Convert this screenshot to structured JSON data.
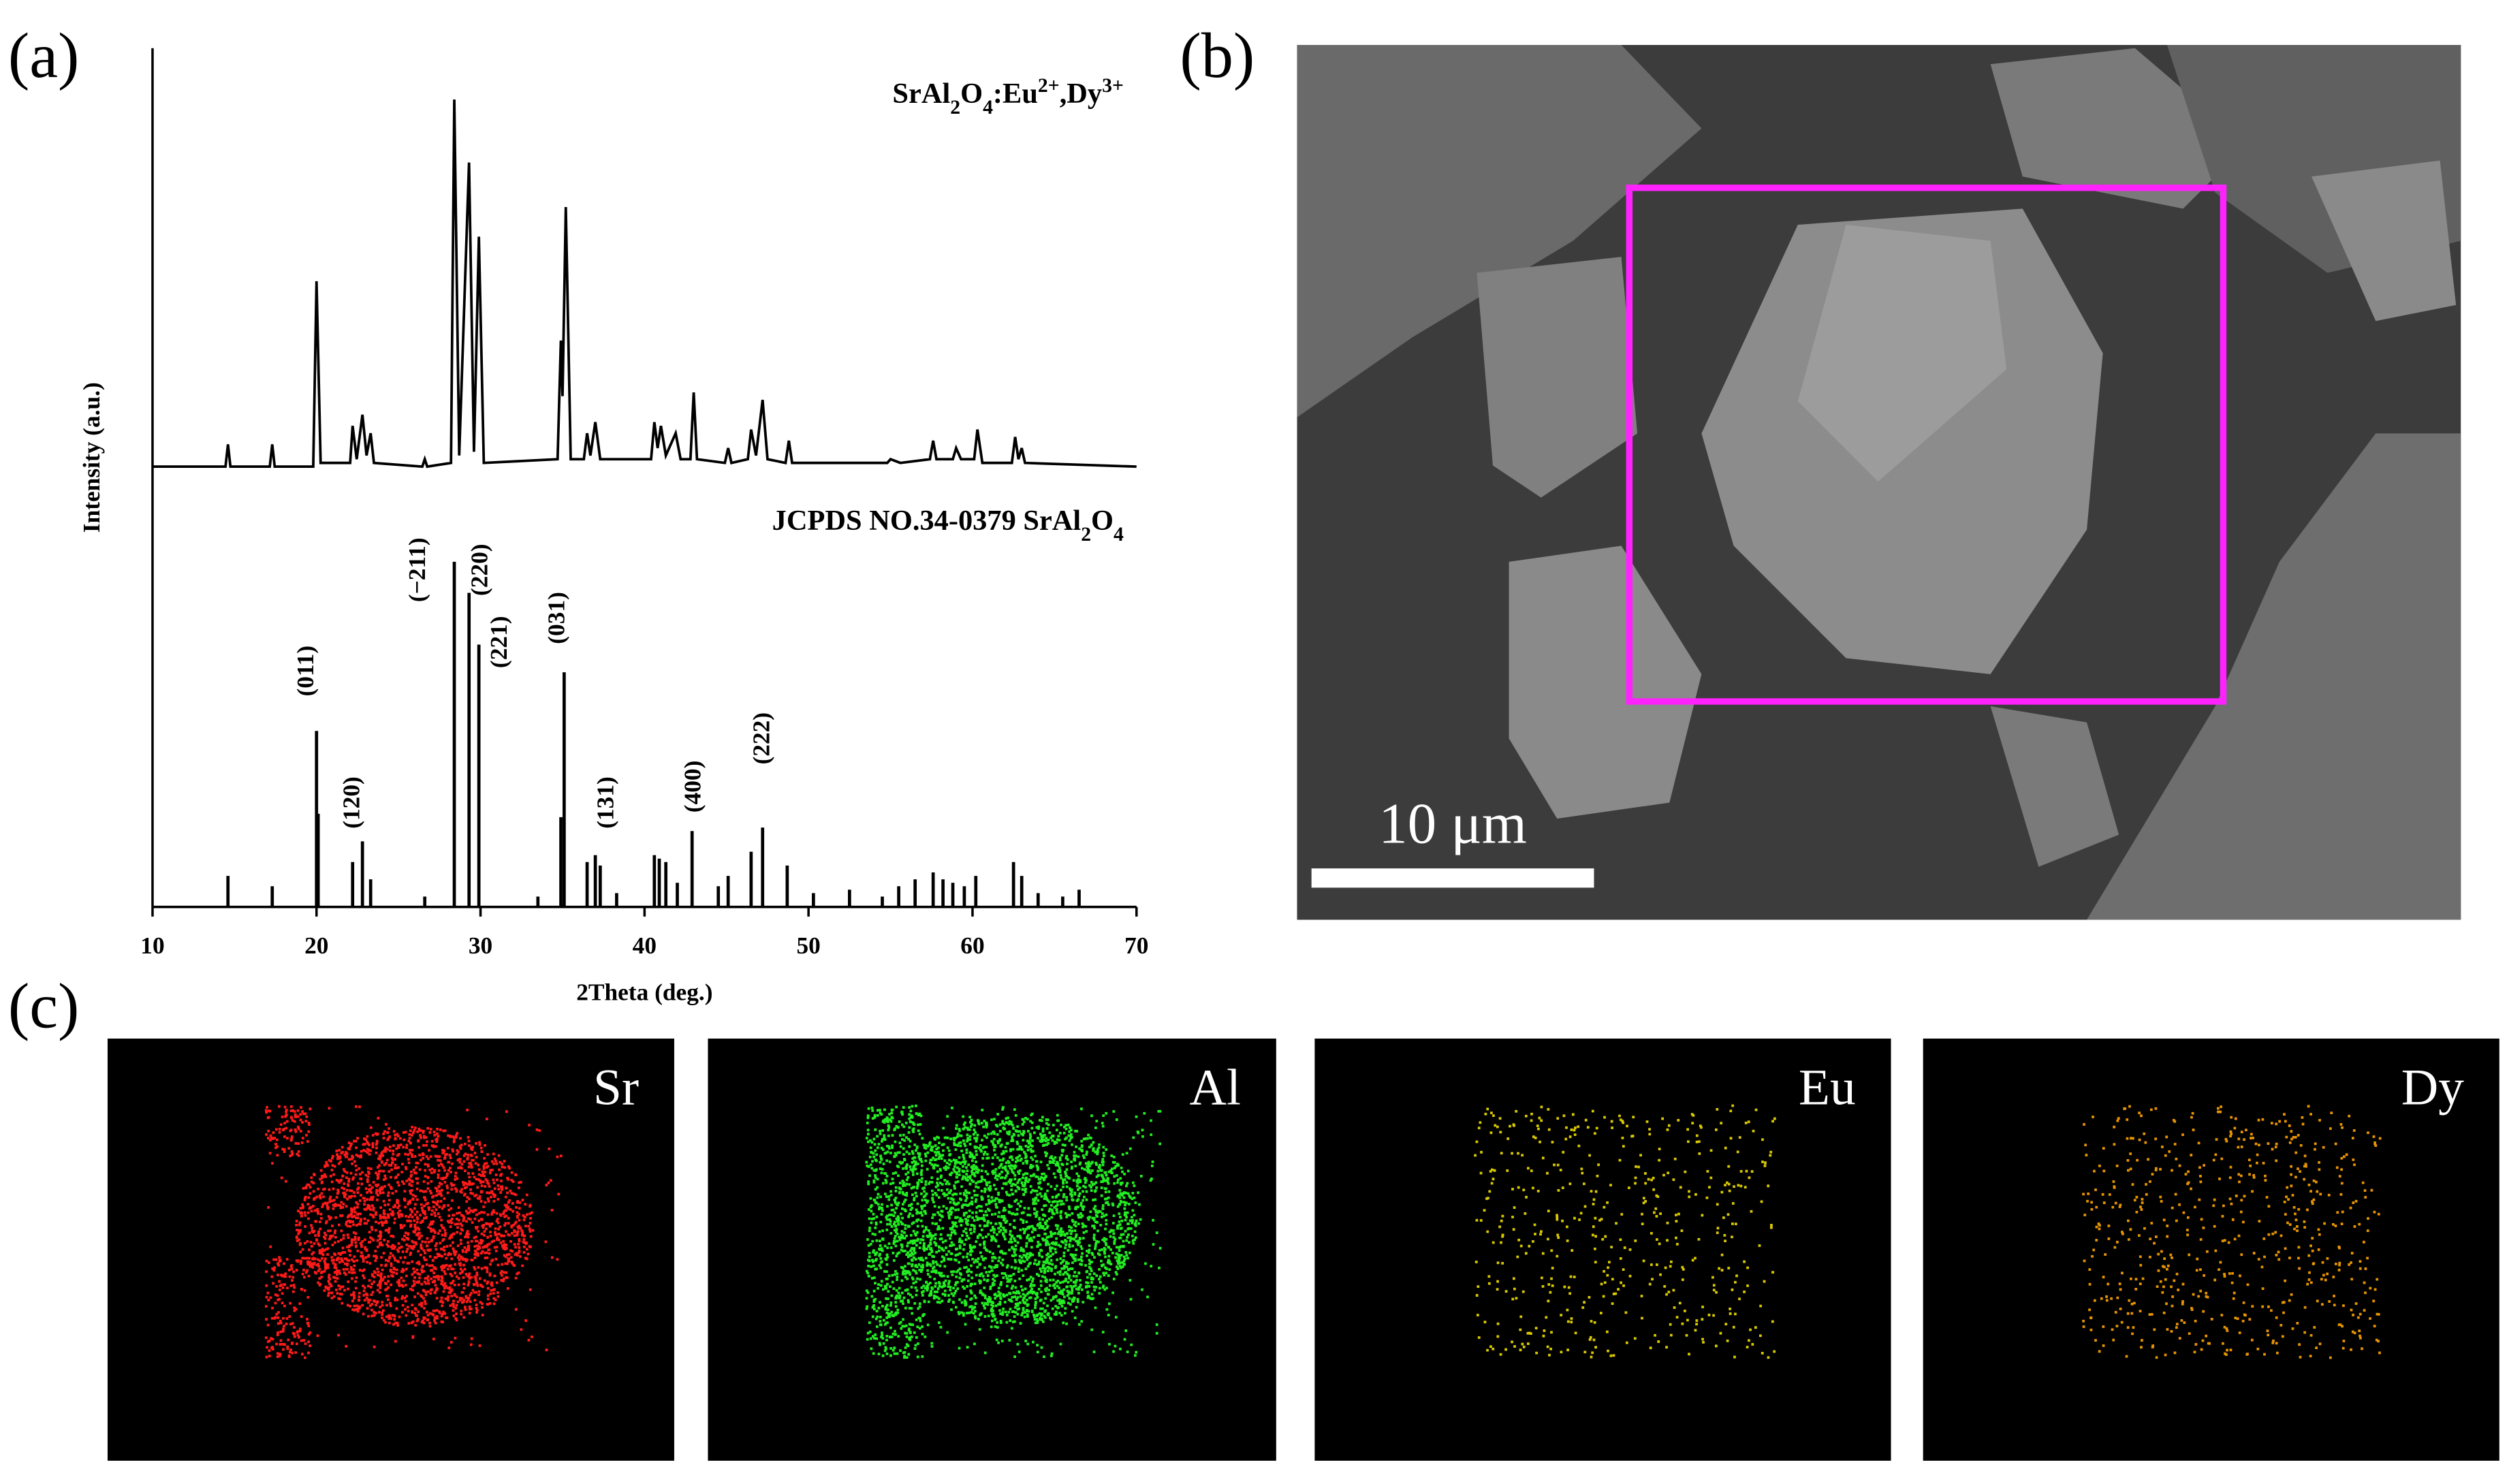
{
  "panel_labels": [
    "(a)",
    "(b)",
    "(c)"
  ],
  "chart_data": {
    "type": "line",
    "xlabel": "2Theta (deg.)",
    "ylabel": "Intensity (a.u.)",
    "xlim": [
      10,
      70
    ],
    "xticks": [
      10,
      20,
      30,
      40,
      50,
      60,
      70
    ],
    "ylim": [
      0,
      100
    ],
    "series": [
      {
        "name": "SrAl2O4:Eu2+,Dy3+",
        "type": "line",
        "color": "#000000",
        "x": [
          10,
          14.45,
          14.6,
          14.75,
          17.15,
          17.3,
          17.45,
          19.8,
          20.0,
          20.25,
          22.05,
          22.2,
          22.45,
          22.8,
          23.05,
          23.3,
          23.5,
          26.45,
          26.6,
          26.75,
          28.2,
          28.4,
          28.7,
          29.3,
          29.6,
          29.9,
          30.2,
          34.7,
          34.9,
          35.0,
          35.2,
          35.5,
          36.3,
          36.5,
          36.7,
          37.0,
          37.3,
          40.4,
          40.6,
          40.8,
          41.0,
          41.3,
          41.9,
          42.2,
          42.8,
          43.0,
          43.2,
          44.9,
          45.1,
          45.3,
          46.3,
          46.5,
          46.8,
          47.2,
          47.5,
          48.6,
          48.8,
          49.0,
          54.8,
          55.0,
          55.6,
          57.4,
          57.6,
          57.8,
          58.8,
          59.0,
          59.3,
          60.1,
          60.3,
          60.6,
          62.4,
          62.6,
          62.8,
          63.0,
          63.2,
          70
        ],
        "values": [
          1,
          1,
          7,
          1,
          1,
          7,
          1,
          1,
          51,
          2,
          2,
          12,
          3,
          15,
          4,
          10,
          2,
          1,
          3,
          1,
          2,
          100,
          4,
          83,
          5,
          63,
          2,
          3,
          35,
          20,
          71,
          3,
          3,
          10,
          4,
          13,
          3,
          3,
          13,
          6,
          12,
          4,
          10,
          3,
          3,
          21,
          3,
          2,
          6,
          2,
          3,
          11,
          4,
          19,
          3,
          2,
          8,
          2,
          2,
          3,
          2,
          3,
          8,
          3,
          3,
          6,
          3,
          3,
          11,
          2,
          2,
          9,
          3,
          6,
          2,
          1
        ]
      },
      {
        "name": "JCPDS NO.34-0379 SrAl2O4",
        "type": "stem",
        "color": "#000000",
        "x": [
          14.6,
          17.3,
          20.0,
          20.1,
          22.2,
          22.8,
          23.3,
          26.6,
          28.4,
          29.3,
          29.9,
          33.5,
          34.9,
          35.1,
          36.5,
          37.0,
          37.3,
          38.3,
          40.6,
          40.9,
          41.3,
          42.0,
          42.9,
          44.5,
          45.1,
          46.5,
          47.2,
          48.7,
          50.3,
          52.5,
          54.5,
          55.5,
          56.5,
          57.6,
          58.2,
          58.8,
          59.5,
          60.2,
          62.5,
          63.0,
          64.0,
          65.5,
          66.5
        ],
        "values": [
          9,
          6,
          51,
          27,
          13,
          19,
          8,
          3,
          100,
          91,
          76,
          3,
          26,
          68,
          13,
          15,
          12,
          4,
          15,
          14,
          13,
          7,
          22,
          6,
          9,
          16,
          23,
          12,
          4,
          5,
          3,
          6,
          8,
          10,
          8,
          7,
          6,
          9,
          13,
          9,
          4,
          3,
          5
        ]
      }
    ],
    "reflections": [
      {
        "label": "(011)",
        "position": 20.0
      },
      {
        "label": "(120)",
        "position": 22.8
      },
      {
        "label": "(−211)",
        "position": 26.8
      },
      {
        "label": "(220)",
        "position": 30.6
      },
      {
        "label": "(221)",
        "position": 31.8
      },
      {
        "label": "(031)",
        "position": 35.3
      },
      {
        "label": "(131)",
        "position": 38.3
      },
      {
        "label": "(400)",
        "position": 43.6
      },
      {
        "label": "(222)",
        "position": 47.8
      }
    ]
  },
  "sem": {
    "scale_bar": "10 μm"
  },
  "maps": [
    {
      "element": "Sr",
      "color": "#ff1a1a"
    },
    {
      "element": "Al",
      "color": "#22ee22"
    },
    {
      "element": "Eu",
      "color": "#d8c800"
    },
    {
      "element": "Dy",
      "color": "#e69400"
    }
  ]
}
